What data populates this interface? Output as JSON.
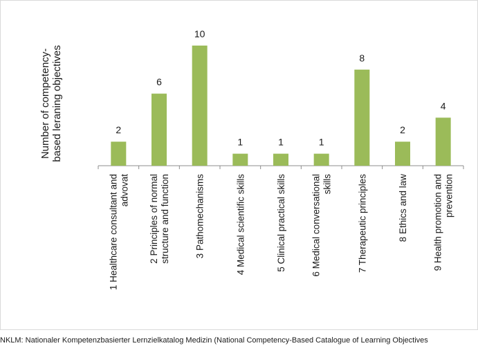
{
  "chart_data": {
    "type": "bar",
    "ylabel": [
      "Number  of competency-",
      "based leraning objectives"
    ],
    "categories": [
      [
        "1 Healthcare consultant and",
        "advovat"
      ],
      [
        "2 Principles of normal",
        "structure and function"
      ],
      [
        "3 Pathomechanisms"
      ],
      [
        "4 Medical scientific skills"
      ],
      [
        "5 Clinical practical skills"
      ],
      [
        "6 Medical conversational",
        "skills"
      ],
      [
        "7 Therapeutic principles"
      ],
      [
        "8 Ethics and law"
      ],
      [
        "9 Health promotion and",
        "prevention"
      ]
    ],
    "values": [
      2,
      6,
      10,
      1,
      1,
      1,
      8,
      2,
      4
    ],
    "ylim": [
      0,
      10
    ],
    "grid": false,
    "bar_color": "#9bbb59"
  },
  "caption": "NKLM: Nationaler Kompetenzbasierter Lernzielkatalog Medizin (National Competency-Based Catalogue of Learning Objectives"
}
